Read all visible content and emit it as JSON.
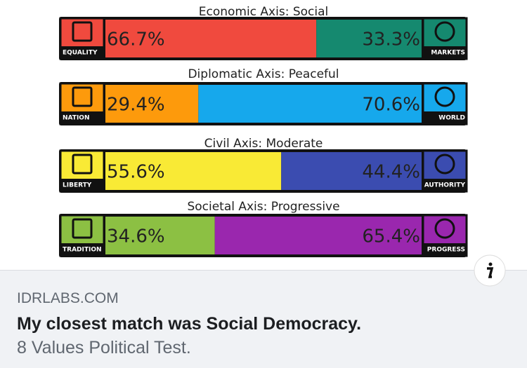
{
  "result_image": {
    "axes": [
      {
        "title": "Economic Axis: Social",
        "left_icon_label": "EQUALITY",
        "right_icon_label": "MARKETS",
        "values": [
          66.7,
          33.3
        ],
        "value_labels": [
          "66.7%",
          "33.3%"
        ],
        "colors": [
          "#f04a3e",
          "#15896f"
        ]
      },
      {
        "title": "Diplomatic Axis: Peaceful",
        "left_icon_label": "NATION",
        "right_icon_label": "WORLD",
        "values": [
          29.4,
          70.6
        ],
        "value_labels": [
          "29.4%",
          "70.6%"
        ],
        "colors": [
          "#fd9a0c",
          "#16a8ec"
        ]
      },
      {
        "title": "Civil Axis: Moderate",
        "left_icon_label": "LIBERTY",
        "right_icon_label": "AUTHORITY",
        "values": [
          55.6,
          44.4
        ],
        "value_labels": [
          "55.6%",
          "44.4%"
        ],
        "colors": [
          "#f9ea35",
          "#3b4cb0"
        ]
      },
      {
        "title": "Societal Axis: Progressive",
        "left_icon_label": "TRADITION",
        "right_icon_label": "PROGRESS",
        "values": [
          34.6,
          65.4
        ],
        "value_labels": [
          "34.6%",
          "65.4%"
        ],
        "colors": [
          "#8cc043",
          "#9a27ae"
        ]
      }
    ]
  },
  "link_preview": {
    "domain": "IDRLABS.COM",
    "title": "My closest match was Social Democracy.",
    "description": "8 Values Political Test."
  }
}
